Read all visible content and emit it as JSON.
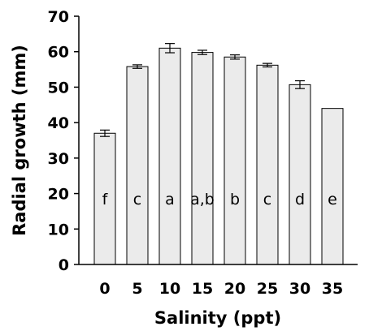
{
  "chart_data": {
    "type": "bar",
    "categories": [
      "0",
      "5",
      "10",
      "15",
      "20",
      "25",
      "30",
      "35"
    ],
    "values": [
      37.0,
      55.8,
      61.0,
      59.8,
      58.5,
      56.2,
      50.7,
      44.0
    ],
    "errors": [
      0.9,
      0.5,
      1.3,
      0.6,
      0.6,
      0.5,
      1.1,
      0
    ],
    "letters": [
      "f",
      "c",
      "a",
      "a,b",
      "b",
      "c",
      "d",
      "e"
    ],
    "xlabel": "Salinity (ppt)",
    "ylabel": "Radial growth (mm)",
    "ylim": [
      0,
      70
    ],
    "yticks": [
      "0",
      "10",
      "20",
      "30",
      "40",
      "50",
      "60",
      "70"
    ],
    "grid": false,
    "bar_fill": "#ebebeb",
    "bar_stroke": "#000000"
  }
}
